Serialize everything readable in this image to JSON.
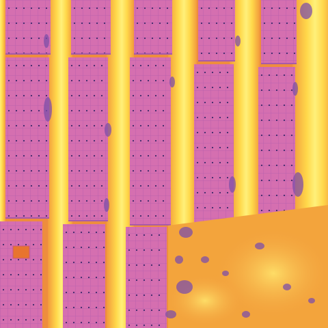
{
  "image": {
    "kind": "thermal-aerial",
    "subject": "solar-panel-rows",
    "palette": {
      "panel": "#d56fb0",
      "panel_dark": "#b860b8",
      "cell_line": "#a85aa8",
      "bolt": "#3b2a6b",
      "ground_hot": "#ffe04a",
      "ground_warm": "#f29a3c",
      "ground_mid": "#ee8a3f",
      "shadow": "#7d4fa8",
      "hotspot": "#e8742e"
    }
  }
}
